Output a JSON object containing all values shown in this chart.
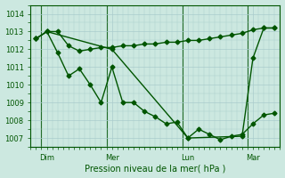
{
  "bg_color": "#cce8e0",
  "grid_color": "#aacccc",
  "line_color": "#005500",
  "ylabel_ticks": [
    1007,
    1008,
    1009,
    1010,
    1011,
    1012,
    1013,
    1014
  ],
  "ylim": [
    1006.5,
    1014.5
  ],
  "xlim": [
    0,
    23
  ],
  "xlabel": "Pression niveau de la mer( hPa )",
  "xtick_positions": [
    1.5,
    7.5,
    14.5,
    20.5
  ],
  "xtick_labels": [
    "Dim",
    "Mer",
    "Lun",
    "Mar"
  ],
  "vline_positions": [
    1,
    7,
    14,
    20
  ],
  "series1_x": [
    0.5,
    1.5,
    2.5,
    3.5,
    4.5,
    5.5,
    6.5,
    7.5,
    8.5,
    9.5,
    10.5,
    11.5,
    12.5,
    13.5,
    14.5,
    15.5,
    16.5,
    17.5,
    18.5,
    19.5,
    20.5,
    21.5,
    22.5
  ],
  "series1_y": [
    1012.6,
    1013.0,
    1013.0,
    1012.2,
    1011.9,
    1012.0,
    1012.1,
    1012.1,
    1012.2,
    1012.2,
    1012.3,
    1012.3,
    1012.4,
    1012.4,
    1012.5,
    1012.5,
    1012.6,
    1012.7,
    1012.8,
    1012.9,
    1013.1,
    1013.2,
    1013.2
  ],
  "series2_x": [
    0.5,
    1.5,
    2.5,
    3.5,
    4.5,
    5.5,
    6.5,
    7.5,
    8.5,
    9.5,
    10.5,
    11.5,
    12.5,
    13.5,
    14.5,
    15.5,
    16.5,
    17.5,
    18.5,
    19.5,
    20.5,
    21.5,
    22.5
  ],
  "series2_y": [
    1012.6,
    1013.0,
    1011.8,
    1010.5,
    1010.9,
    1010.0,
    1009.0,
    1011.0,
    1009.0,
    1009.0,
    1008.5,
    1008.2,
    1007.8,
    1007.9,
    1007.0,
    1007.5,
    1007.2,
    1006.9,
    1007.1,
    1007.2,
    1007.8,
    1008.3,
    1008.4
  ],
  "series3_x": [
    0.5,
    1.5,
    7.5,
    14.5,
    19.5,
    20.5,
    21.5,
    22.5
  ],
  "series3_y": [
    1012.6,
    1013.0,
    1012.0,
    1007.0,
    1007.1,
    1011.5,
    1013.2,
    1013.2
  ],
  "marker": "D",
  "markersize": 2.5,
  "linewidth": 1.0,
  "xlabel_fontsize": 7,
  "tick_fontsize": 6
}
